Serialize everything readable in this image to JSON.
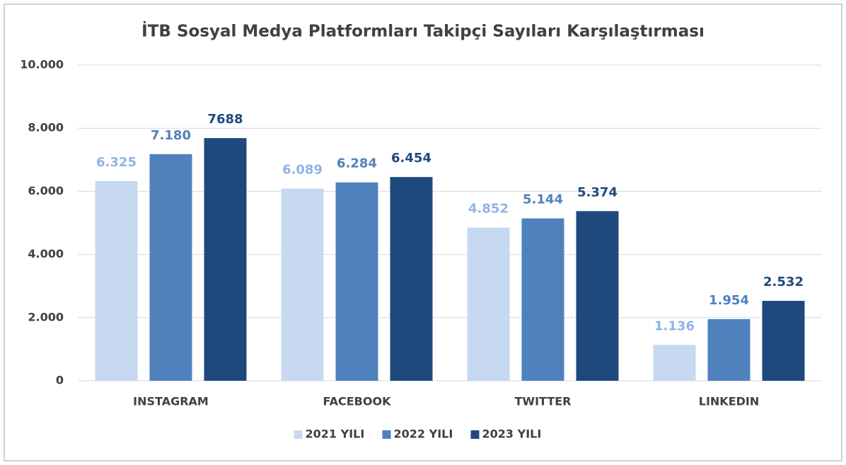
{
  "chart_data": {
    "type": "bar",
    "title": "İTB Sosyal Medya Platformları Takipçi Sayıları Karşılaştırması",
    "categories": [
      "INSTAGRAM",
      "FACEBOOK",
      "TWITTER",
      "LINKEDIN"
    ],
    "series": [
      {
        "name": "2021 YILI",
        "color": "#c6d9f0",
        "label_color": "#8fb4e3",
        "values": [
          6325,
          6089,
          4852,
          1136
        ],
        "value_labels": [
          "6.325",
          "6.089",
          "4.852",
          "1.136"
        ]
      },
      {
        "name": "2022 YILI",
        "color": "#4f81bd",
        "label_color": "#4f81bd",
        "values": [
          7180,
          6284,
          5144,
          1954
        ],
        "value_labels": [
          "7.180",
          "6.284",
          "5.144",
          "1.954"
        ]
      },
      {
        "name": "2023 YILI",
        "color": "#1f497d",
        "label_color": "#1f497d",
        "values": [
          7688,
          6454,
          5374,
          2532
        ],
        "value_labels": [
          "7688",
          "6.454",
          "5.374",
          "2.532"
        ]
      }
    ],
    "ylim": [
      0,
      10000
    ],
    "yticks": [
      0,
      {
        "value": 2000,
        "label": "2.000"
      },
      {
        "value": 4000,
        "label": "4.000"
      },
      {
        "value": 6000,
        "label": "6.000"
      },
      {
        "value": 8000,
        "label": "8.000"
      },
      {
        "value": 10000,
        "label": "10.000"
      }
    ],
    "grid": true,
    "legend": "bottom"
  }
}
